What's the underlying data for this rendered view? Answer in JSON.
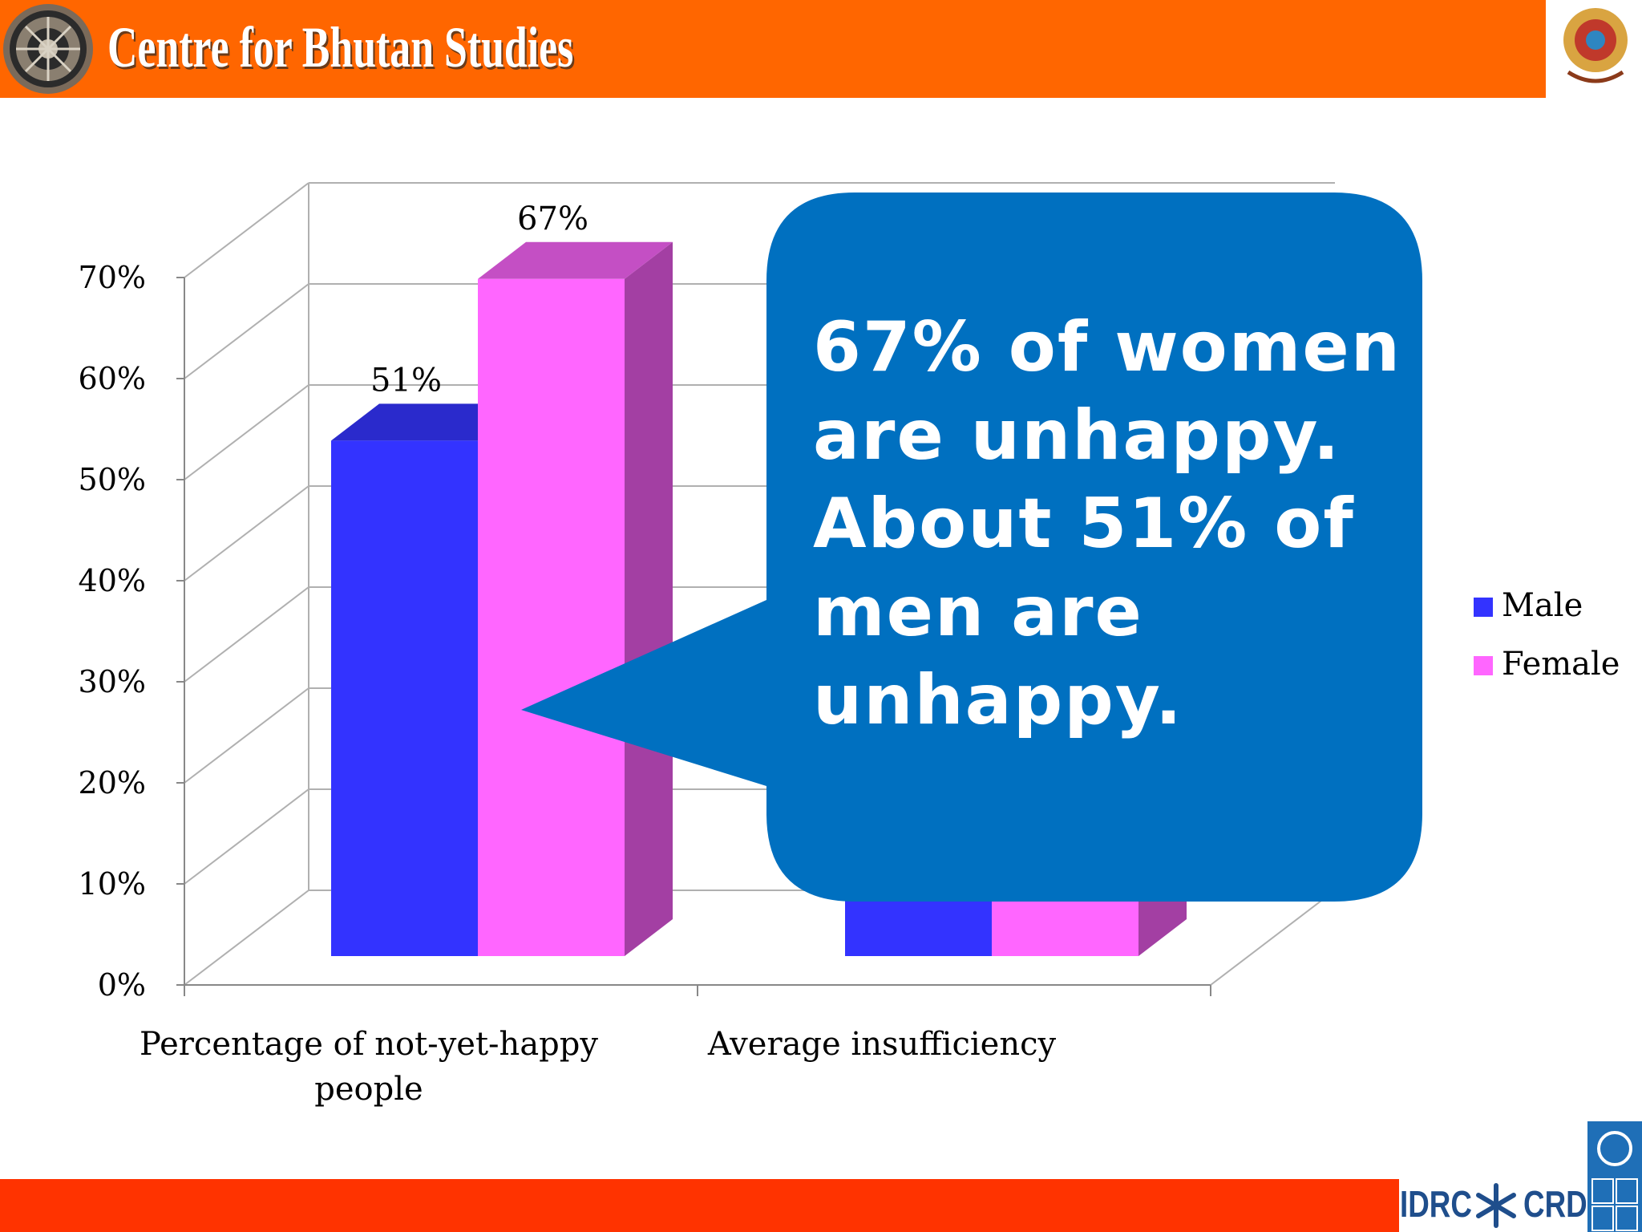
{
  "header": {
    "title": "Centre for Bhutan Studies",
    "brand_color": "#ff6600"
  },
  "chart_data": {
    "type": "bar",
    "style": "3d-clustered-column",
    "title": "",
    "xlabel": "",
    "ylabel": "",
    "ylim": [
      0,
      0.7
    ],
    "y_ticks": [
      "0%",
      "10%",
      "20%",
      "30%",
      "40%",
      "50%",
      "60%",
      "70%"
    ],
    "categories": [
      "Percentage of not-yet-happy people",
      "Average insufficiency"
    ],
    "series": [
      {
        "name": "Male",
        "color": "#3333ff",
        "values": [
          0.51,
          null
        ],
        "labels": [
          "51%",
          ""
        ]
      },
      {
        "name": "Female",
        "color": "#ff66ff",
        "values": [
          0.67,
          null
        ],
        "labels": [
          "67%",
          ""
        ]
      }
    ],
    "legend_position": "right",
    "grid": true
  },
  "callout": {
    "text": "67% of women are unhappy. About 51% of men are unhappy.",
    "color": "#0070c0"
  },
  "footer": {
    "idrc_left": "IDRC",
    "idrc_right": "CRDI",
    "bar_color": "#ff3300"
  }
}
